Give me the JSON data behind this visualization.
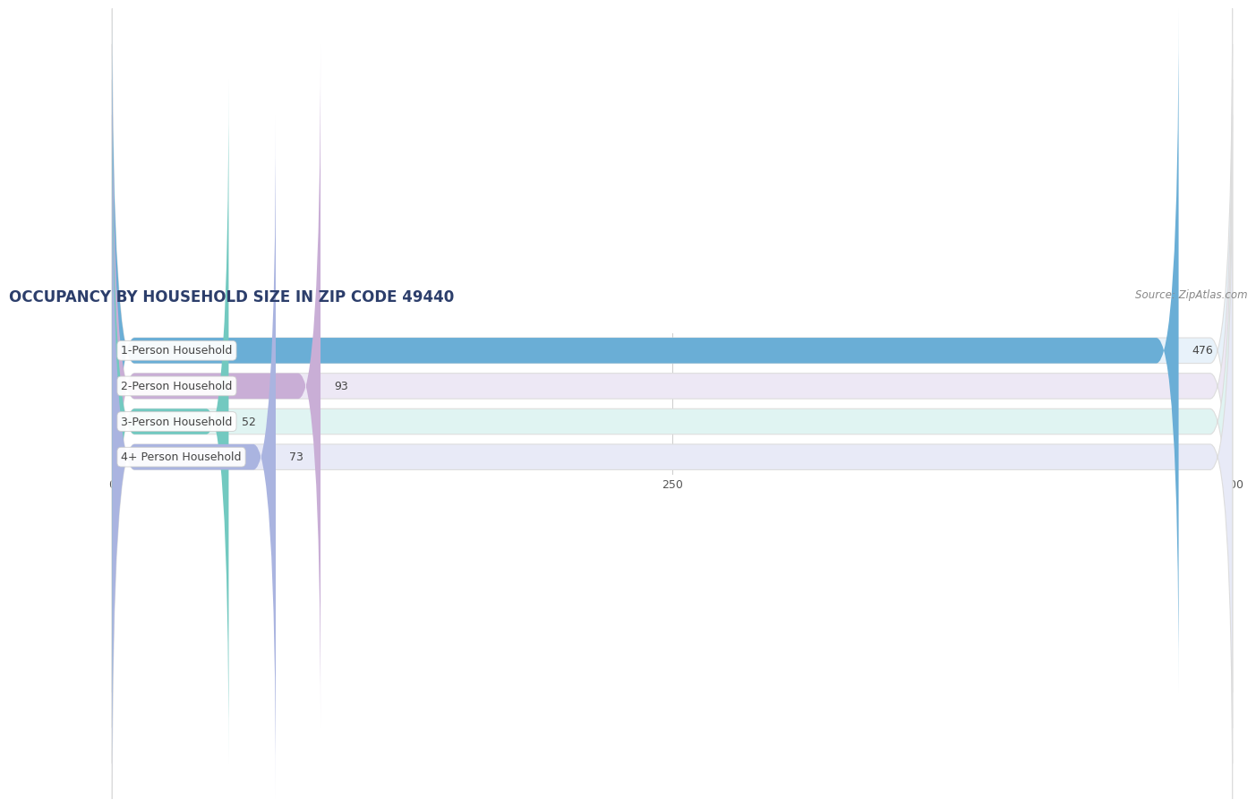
{
  "title": "OCCUPANCY BY HOUSEHOLD SIZE IN ZIP CODE 49440",
  "source": "Source: ZipAtlas.com",
  "categories": [
    "1-Person Household",
    "2-Person Household",
    "3-Person Household",
    "4+ Person Household"
  ],
  "values": [
    476,
    93,
    52,
    73
  ],
  "bar_colors": [
    "#6aaed6",
    "#c9aed6",
    "#72c9c0",
    "#aab4e0"
  ],
  "bar_background_colors": [
    "#e8f2fa",
    "#ede8f5",
    "#e0f4f2",
    "#e8eaf7"
  ],
  "xlim": [
    0,
    500
  ],
  "xticks": [
    0,
    250,
    500
  ],
  "background_color": "#ffffff",
  "bar_area_bg": "#f5f5f5",
  "bar_height": 0.72,
  "label_color": "#444444",
  "value_color": "#444444",
  "title_fontsize": 12,
  "label_fontsize": 9,
  "value_fontsize": 9,
  "source_fontsize": 8.5
}
